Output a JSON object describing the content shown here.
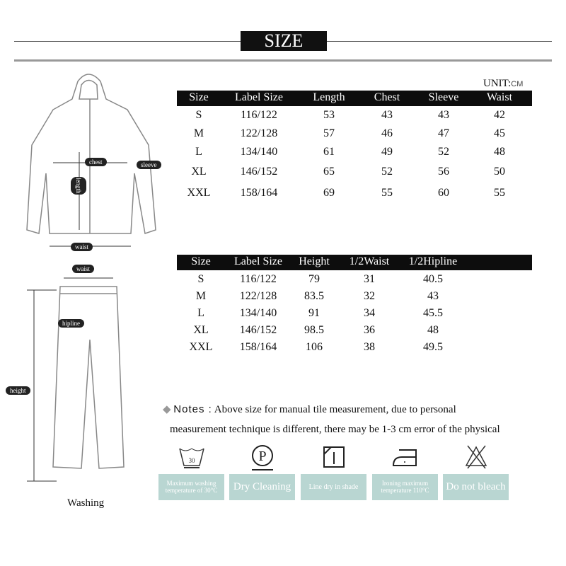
{
  "title": "SIZE",
  "unit_label": "UNIT:",
  "unit_value": "CM",
  "top_table": {
    "headers": [
      "Size",
      "Label Size",
      "Length",
      "Chest",
      "Sleeve",
      "Waist"
    ],
    "rows": [
      [
        "S",
        "116/122",
        "53",
        "43",
        "43",
        "42"
      ],
      [
        "M",
        "122/128",
        "57",
        "46",
        "47",
        "45"
      ],
      [
        "L",
        "134/140",
        "61",
        "49",
        "52",
        "48"
      ],
      [
        "XL",
        "146/152",
        "65",
        "52",
        "56",
        "50"
      ],
      [
        "XXL",
        "158/164",
        "69",
        "55",
        "60",
        "55"
      ]
    ]
  },
  "bottom_table": {
    "headers": [
      "Size",
      "Label Size",
      "Height",
      "1/2Waist",
      "1/2Hipline"
    ],
    "rows": [
      [
        "S",
        "116/122",
        "79",
        "31",
        "40.5"
      ],
      [
        "M",
        "122/128",
        "83.5",
        "32",
        "43"
      ],
      [
        "L",
        "134/140",
        "91",
        "34",
        "45.5"
      ],
      [
        "XL",
        "146/152",
        "98.5",
        "36",
        "48"
      ],
      [
        "XXL",
        "158/164",
        "106",
        "38",
        "49.5"
      ]
    ]
  },
  "notes": {
    "label": "Notes :",
    "line1": "Above size for manual tile measurement, due to personal",
    "line2": "measurement technique is different, there may be 1-3 cm error of the physical"
  },
  "jacket_labels": {
    "chest": "chest",
    "sleeve": "sleeve",
    "length": "length",
    "waist": "waist"
  },
  "pants_labels": {
    "waist": "waist",
    "hipline": "hipline",
    "height": "height"
  },
  "washing_label": "Washing",
  "care": [
    {
      "icon": "wash-30-icon",
      "number": "30",
      "text": "Maximum washing temperature of 30°C"
    },
    {
      "icon": "dry-clean-p-icon",
      "symbol": "P",
      "text": "Dry Cleaning"
    },
    {
      "icon": "line-dry-shade-icon",
      "text": "Line dry in shade"
    },
    {
      "icon": "iron-low-icon",
      "text": "Ironing maximum temperature 110°C"
    },
    {
      "icon": "no-bleach-icon",
      "text": "Do not bleach"
    }
  ],
  "colors": {
    "care_box": "#b9d6d2",
    "header": "#0d0d0d"
  }
}
